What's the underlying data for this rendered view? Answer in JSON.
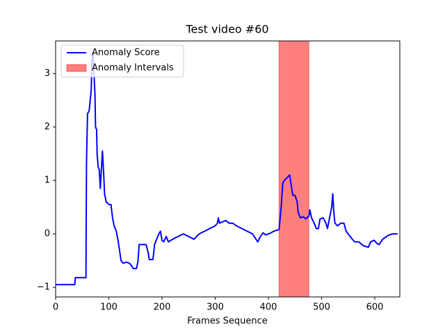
{
  "chart_data": {
    "type": "line",
    "title": "Test video #60",
    "x_label": "Frames Sequence",
    "xlim": [
      0,
      647
    ],
    "ylim": [
      -1.18,
      3.61
    ],
    "xticks": [
      0,
      100,
      200,
      300,
      400,
      500,
      600
    ],
    "yticks": [
      {
        "value": -1,
        "label": "−1"
      },
      0,
      1,
      2,
      3
    ],
    "legend": "upper left",
    "spans": {
      "name": "Anomaly Intervals",
      "color": "#ff0000",
      "alpha": 0.5,
      "ranges": [
        [
          420,
          476
        ]
      ]
    },
    "series": [
      {
        "name": "Anomaly Score",
        "color": "#0000ff",
        "x": [
          0,
          36,
          37,
          57,
          58,
          59,
          60,
          63,
          65,
          67,
          68,
          70,
          72,
          74,
          75,
          77,
          78,
          80,
          82,
          84,
          86,
          88,
          90,
          92,
          95,
          100,
          104,
          107,
          110,
          114,
          117,
          120,
          123,
          127,
          133,
          139,
          143,
          146,
          152,
          155,
          157,
          165,
          170,
          174,
          176,
          183,
          186,
          190,
          194,
          197,
          200,
          203,
          208,
          212,
          220,
          230,
          240,
          250,
          260,
          270,
          280,
          290,
          300,
          304,
          306,
          308,
          320,
          326,
          333,
          340,
          350,
          360,
          370,
          380,
          385,
          390,
          395,
          405,
          410,
          420,
          424,
          427,
          430,
          435,
          440,
          443,
          446,
          450,
          454,
          456,
          460,
          466,
          470,
          476,
          478,
          481,
          486,
          490,
          494,
          497,
          503,
          508,
          511,
          515,
          519,
          521,
          523,
          525,
          530,
          536,
          542,
          546,
          550,
          556,
          562,
          570,
          578,
          588,
          592,
          599,
          604,
          608,
          615,
          622,
          627,
          634,
          643
        ],
        "values": [
          -0.95,
          -0.95,
          -0.82,
          -0.82,
          1.3,
          1.8,
          2.25,
          2.3,
          2.5,
          2.7,
          3.2,
          3.4,
          3.0,
          2.6,
          2.0,
          1.95,
          1.5,
          1.25,
          1.2,
          0.85,
          1.2,
          1.55,
          1.2,
          0.75,
          0.6,
          0.55,
          0.55,
          0.3,
          0.15,
          0.05,
          -0.1,
          -0.3,
          -0.5,
          -0.55,
          -0.53,
          -0.55,
          -0.6,
          -0.65,
          -0.65,
          -0.5,
          -0.2,
          -0.2,
          -0.2,
          -0.35,
          -0.48,
          -0.48,
          -0.2,
          -0.1,
          0,
          0.05,
          -0.12,
          -0.15,
          -0.05,
          -0.15,
          -0.1,
          -0.05,
          0,
          -0.05,
          -0.1,
          0,
          0.05,
          0.1,
          0.15,
          0.2,
          0.3,
          0.2,
          0.25,
          0.2,
          0.2,
          0.15,
          0.1,
          0.05,
          0,
          -0.15,
          -0.05,
          0.02,
          -0.02,
          0.02,
          0.05,
          0.08,
          0.5,
          0.95,
          1.0,
          1.05,
          1.1,
          0.9,
          0.72,
          0.72,
          0.6,
          0.4,
          0.3,
          0.32,
          0.28,
          0.33,
          0.45,
          0.3,
          0.2,
          0.1,
          0.1,
          0.28,
          0.3,
          0.2,
          0.1,
          0.3,
          0.5,
          0.75,
          0.4,
          0.2,
          0.15,
          0.2,
          0.2,
          0.05,
          0,
          -0.08,
          -0.15,
          -0.15,
          -0.22,
          -0.25,
          -0.15,
          -0.12,
          -0.18,
          -0.2,
          -0.1,
          -0.05,
          -0.02,
          0,
          0
        ]
      }
    ]
  }
}
